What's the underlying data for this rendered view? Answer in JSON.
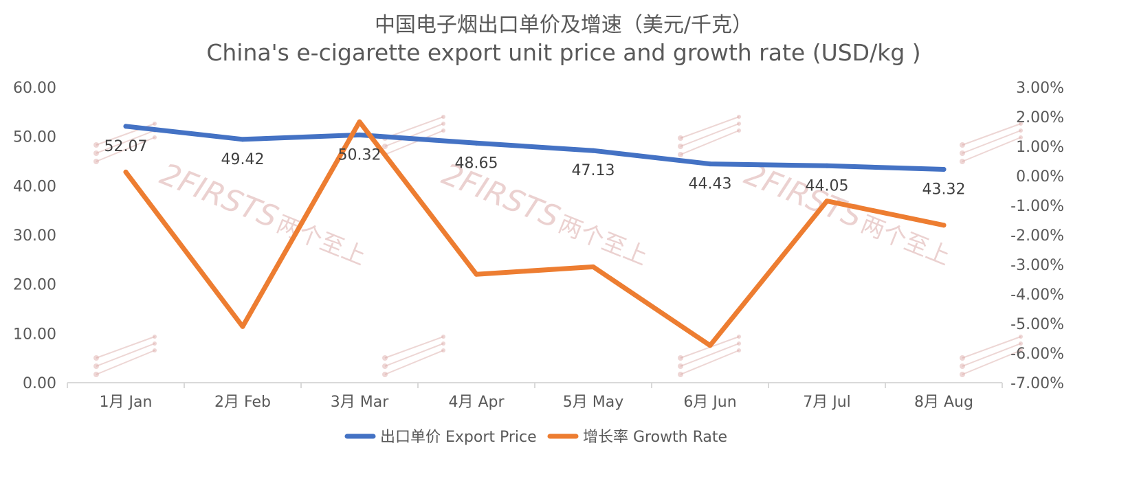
{
  "chart_data": {
    "type": "line",
    "title": "中国电子烟出口单价及增速（美元/千克）",
    "subtitle": "China's e-cigarette export unit price and growth rate (USD/kg )",
    "categories": [
      "1月 Jan",
      "2月 Feb",
      "3月 Mar",
      "4月 Apr",
      "5月 May",
      "6月 Jun",
      "7月 Jul",
      "8月 Aug"
    ],
    "series": [
      {
        "name": "出口单价 Export Price",
        "axis": "left",
        "color": "#4472c4",
        "values": [
          52.07,
          49.42,
          50.32,
          48.65,
          47.13,
          44.43,
          44.05,
          43.32
        ],
        "labels": [
          "52.07",
          "49.42",
          "50.32",
          "48.65",
          "47.13",
          "44.43",
          "44.05",
          "43.32"
        ]
      },
      {
        "name": "增长率 Growth Rate",
        "axis": "right",
        "color": "#ed7d31",
        "values": [
          0.0013,
          -0.051,
          0.0183,
          -0.0333,
          -0.0308,
          -0.0574,
          -0.0085,
          -0.0167
        ]
      }
    ],
    "y_left": {
      "min": 0,
      "max": 60,
      "ticks": [
        "0.00",
        "10.00",
        "20.00",
        "30.00",
        "40.00",
        "50.00",
        "60.00"
      ]
    },
    "y_right": {
      "min": -0.07,
      "max": 0.03,
      "ticks": [
        "-7.00%",
        "-6.00%",
        "-5.00%",
        "-4.00%",
        "-3.00%",
        "-2.00%",
        "-1.00%",
        "0.00%",
        "1.00%",
        "2.00%",
        "3.00%"
      ]
    },
    "grid": false,
    "legend": "bottom"
  },
  "watermark": {
    "text": "2FIRSTS",
    "cn": "两个至上"
  }
}
